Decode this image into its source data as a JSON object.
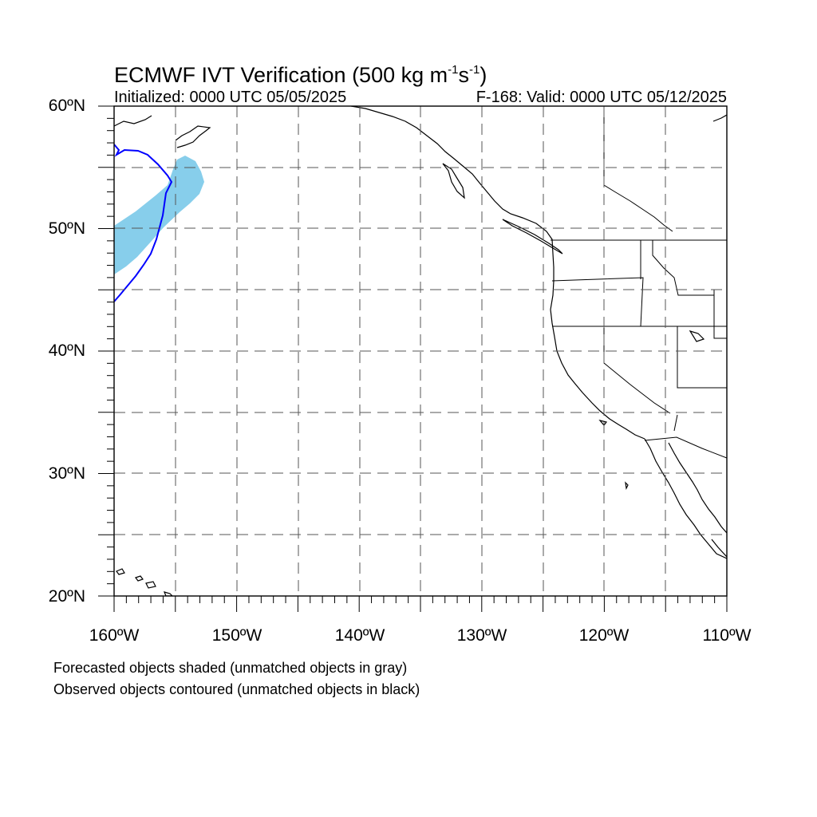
{
  "title": {
    "main": "ECMWF IVT Verification (500 kg m",
    "exp1": "-1",
    "mid": "s",
    "exp2": "-1",
    "end": ")"
  },
  "subtitle_left": "Initialized: 0000 UTC 05/05/2025",
  "subtitle_right": "F-168: Valid: 0000 UTC 05/12/2025",
  "map": {
    "projection": "cylindrical equidistant",
    "lon_range": [
      -160,
      -110
    ],
    "lat_range": [
      20,
      60
    ],
    "grid": "dashed, every 5 degrees",
    "colors": {
      "forecast_object": "#87ceeb",
      "observed_object": "#0000ff",
      "coastline": "#000000",
      "grid": "#555555"
    }
  },
  "axes": {
    "lat_labels": [
      "60ºN",
      "50ºN",
      "40ºN",
      "30ºN",
      "20ºN"
    ],
    "lon_labels": [
      "160ºW",
      "150ºW",
      "140ºW",
      "130ºW",
      "120ºW",
      "110ºW"
    ]
  },
  "notes": {
    "line1": "Forecasted objects shaded (unmatched objects in gray)",
    "line2": "Observed objects contoured (unmatched objects in black)"
  }
}
